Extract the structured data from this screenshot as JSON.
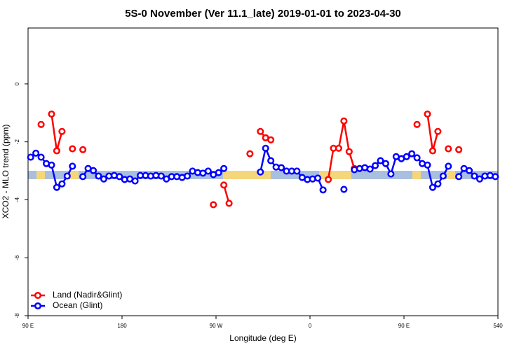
{
  "chart_data": {
    "type": "line",
    "title": "5S-0 November (Ver 11.1_late)   2019-01-01 to 2023-04-30",
    "x_label": "Longitude (deg E)",
    "y_label": "XCO2 - MLO trend (ppm)",
    "xlim": [
      90,
      540
    ],
    "xticks": [
      {
        "value": 90,
        "label": "90 E"
      },
      180,
      {
        "value": 270,
        "label": "90 W"
      },
      {
        "value": 360,
        "label": "0"
      },
      {
        "value": 450,
        "label": "90 E"
      },
      540
    ],
    "ylim": [
      -8,
      1.93
    ],
    "yticks": [
      -8,
      -6,
      -4,
      -2,
      0
    ],
    "legend": "bottom-left",
    "series": [
      {
        "name": "Land (Nadir&Glint)",
        "color": "#ff0000",
        "x": [
          102.5,
          107.5,
          112.5,
          117.5,
          122.5,
          127.5,
          132.5,
          137.5,
          142.5,
          147.5,
          267.5,
          272.5,
          277.5,
          282.5,
          287.5,
          302.5,
          307.5,
          312.5,
          317.5,
          322.5,
          327.5,
          377.5,
          382.5,
          387.5,
          392.5,
          397.5,
          402.5,
          407.5,
          462.5,
          467.5,
          472.5,
          477.5,
          482.5,
          487.5,
          492.5,
          497.5,
          502.5
        ],
        "values": [
          -1.4,
          null,
          -1.04,
          -2.31,
          -1.64,
          null,
          -2.24,
          null,
          -2.27,
          null,
          -4.17,
          null,
          -3.49,
          -4.12,
          null,
          -2.41,
          null,
          -1.64,
          -1.86,
          -1.93,
          null,
          -3.3,
          -2.22,
          -2.22,
          -1.28,
          -2.34,
          -2.92,
          null,
          -1.4,
          null,
          -1.04,
          -2.31,
          -1.64,
          null,
          -2.24,
          null,
          -2.27
        ]
      },
      {
        "name": "Ocean (Glint)",
        "color": "#0000ff",
        "x": [
          92.5,
          97.5,
          102.5,
          107.5,
          112.5,
          117.5,
          122.5,
          127.5,
          132.5,
          137.5,
          142.5,
          147.5,
          152.5,
          157.5,
          162.5,
          167.5,
          172.5,
          177.5,
          182.5,
          187.5,
          192.5,
          197.5,
          202.5,
          207.5,
          212.5,
          217.5,
          222.5,
          227.5,
          232.5,
          237.5,
          242.5,
          247.5,
          252.5,
          257.5,
          262.5,
          267.5,
          272.5,
          277.5,
          282.5,
          312.5,
          317.5,
          322.5,
          327.5,
          332.5,
          337.5,
          342.5,
          347.5,
          352.5,
          357.5,
          362.5,
          367.5,
          372.5,
          377.5,
          392.5,
          397.5,
          402.5,
          407.5,
          412.5,
          417.5,
          422.5,
          427.5,
          432.5,
          437.5,
          442.5,
          447.5,
          452.5,
          457.5,
          462.5,
          467.5,
          472.5,
          477.5,
          482.5,
          487.5,
          492.5,
          497.5,
          502.5,
          507.5,
          512.5,
          517.5,
          522.5,
          527.5,
          532.5,
          537.5
        ],
        "values": [
          -2.53,
          -2.39,
          -2.53,
          -2.75,
          -2.8,
          -3.57,
          -3.45,
          -3.18,
          -2.84,
          null,
          -3.2,
          -2.92,
          -2.99,
          -3.18,
          -3.28,
          -3.18,
          -3.16,
          -3.2,
          -3.3,
          -3.28,
          -3.35,
          -3.16,
          -3.16,
          -3.18,
          -3.16,
          -3.18,
          -3.28,
          -3.2,
          -3.2,
          -3.23,
          -3.18,
          -3.01,
          -3.06,
          -3.08,
          -3.01,
          -3.13,
          -3.06,
          -2.92,
          null,
          -3.04,
          -2.22,
          -2.65,
          -2.87,
          -2.89,
          -3.01,
          -3.01,
          -3.01,
          -3.23,
          -3.3,
          -3.28,
          -3.25,
          -3.66,
          null,
          -3.64,
          null,
          -2.96,
          -2.92,
          -2.89,
          -2.94,
          -2.82,
          -2.65,
          -2.75,
          -3.11,
          -2.51,
          -2.58,
          -2.51,
          -2.41,
          -2.55,
          -2.75,
          -2.8,
          -3.57,
          -3.45,
          -3.18,
          -2.84,
          null,
          -3.2,
          -2.92,
          -2.99,
          -3.18,
          -3.28,
          -3.18,
          -3.16,
          -3.2
        ]
      }
    ]
  }
}
